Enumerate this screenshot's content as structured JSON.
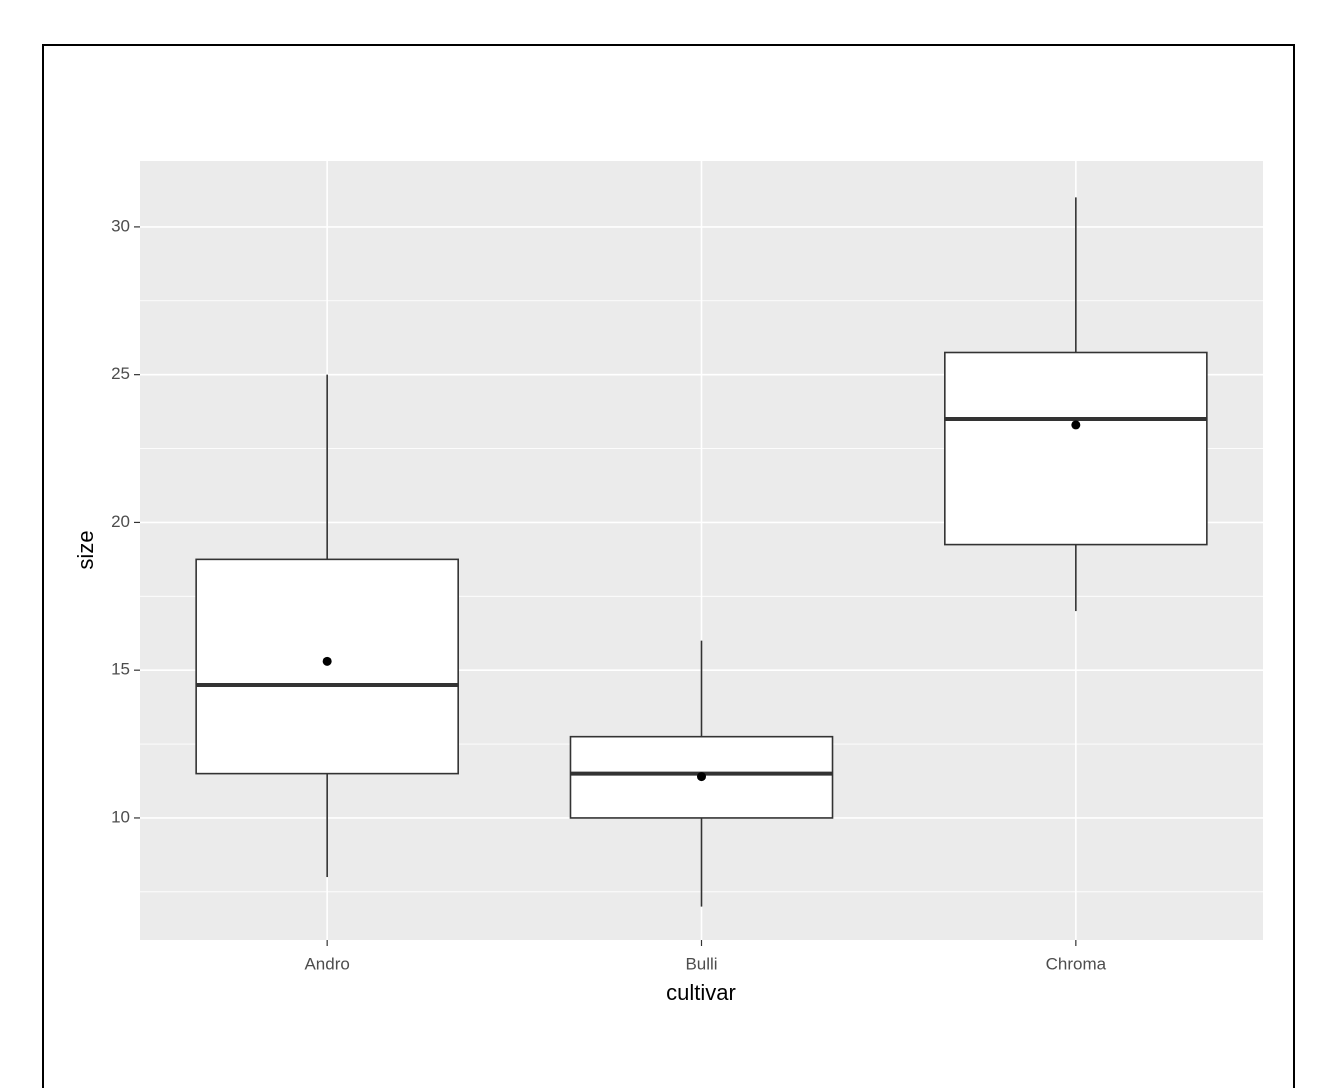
{
  "chart_data": {
    "type": "boxplot",
    "x_label": "cultivar",
    "y_label": "size",
    "categories": [
      "Andro",
      "Bulli",
      "Chroma"
    ],
    "boxes": [
      {
        "whisker_low": 8,
        "q1": 11.5,
        "median": 14.5,
        "q3": 18.75,
        "whisker_high": 25,
        "mean": 15.3
      },
      {
        "whisker_low": 7,
        "q1": 10,
        "median": 11.5,
        "q3": 12.75,
        "whisker_high": 16,
        "mean": 11.4
      },
      {
        "whisker_low": 17,
        "q1": 19.25,
        "median": 23.5,
        "q3": 25.75,
        "whisker_high": 31,
        "mean": 23.3
      }
    ],
    "ylim": [
      5.87,
      32.23
    ],
    "yticks": [
      10,
      15,
      20,
      25,
      30
    ],
    "y_minor_grid": [
      7.5,
      12.5,
      17.5,
      22.5,
      27.5
    ],
    "grid": true,
    "panel_color": "#ebebeb",
    "box_color": "#ffffff",
    "line_color": "#333333",
    "mean_color": "#000000"
  }
}
